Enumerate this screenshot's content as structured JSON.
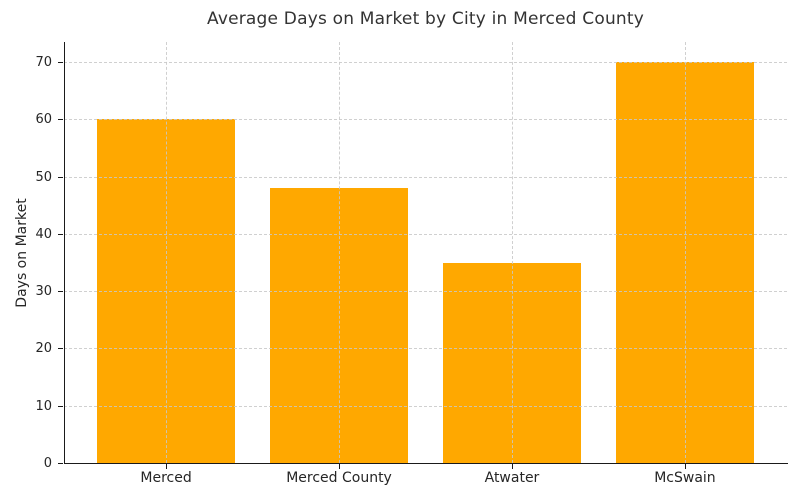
{
  "chart_data": {
    "type": "bar",
    "title": "Average Days on Market by City in Merced County",
    "xlabel": "",
    "ylabel": "Days on Market",
    "categories": [
      "Merced",
      "Merced County",
      "Atwater",
      "McSwain"
    ],
    "values": [
      60,
      48,
      35,
      70
    ],
    "yticks": [
      0,
      10,
      20,
      30,
      40,
      50,
      60,
      70
    ],
    "ylim": [
      0,
      73.5
    ],
    "bar_width_fraction": 0.8,
    "grid": "dashed, horizontal and vertical, drawn above bars",
    "legend_position": "none",
    "colors": {
      "bar": "#FFA800",
      "grid": "#C8C8C8",
      "axis": "#1A1A1A",
      "tick_text": "#262626",
      "title_text": "#333333",
      "background": "#FFFFFF"
    }
  }
}
